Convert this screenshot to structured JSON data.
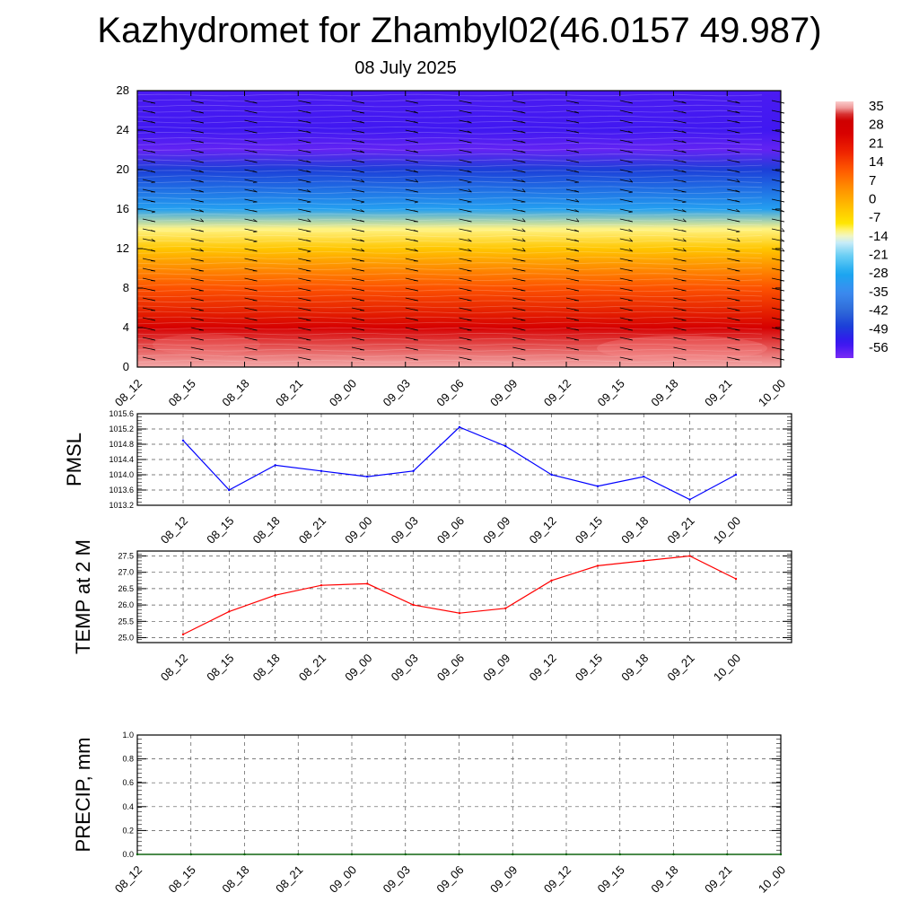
{
  "header": {
    "title": "Kazhydromet for Zhambyl02(46.0157 49.987)",
    "date": "08 July 2025"
  },
  "chart_data": [
    {
      "id": "profile",
      "type": "heatmap",
      "title": "",
      "xlabel": "",
      "ylabel": "",
      "categories": [
        "08_12",
        "08_15",
        "08_18",
        "08_21",
        "09_00",
        "09_03",
        "09_06",
        "09_09",
        "09_12",
        "09_15",
        "09_18",
        "09_21",
        "10_00"
      ],
      "y_ticks": [
        "0",
        "4",
        "8",
        "12",
        "16",
        "20",
        "24",
        "28"
      ],
      "ylim": [
        0,
        28
      ],
      "colorbar_labels": [
        "35",
        "28",
        "21",
        "14",
        "7",
        "0",
        "-7",
        "-14",
        "-21",
        "-28",
        "-35",
        "-42",
        "-49",
        "-56"
      ],
      "temperature_by_level": [
        {
          "level": 0,
          "value": 35
        },
        {
          "level": 4,
          "value": 26
        },
        {
          "level": 8,
          "value": 12
        },
        {
          "level": 12,
          "value": -4
        },
        {
          "level": 14,
          "value": -12
        },
        {
          "level": 16,
          "value": -30
        },
        {
          "level": 20,
          "value": -48
        },
        {
          "level": 22,
          "value": -58
        },
        {
          "level": 24,
          "value": -55
        },
        {
          "level": 28,
          "value": -56
        }
      ],
      "has_wind_barbs": true
    },
    {
      "id": "pmsl",
      "type": "line",
      "ylabel": "PMSL",
      "categories": [
        "08_12",
        "08_15",
        "08_18",
        "08_21",
        "09_00",
        "09_03",
        "09_06",
        "09_09",
        "09_12",
        "09_15",
        "09_18",
        "09_21",
        "10_00"
      ],
      "y_ticks": [
        "1015.6",
        "1015.2",
        "1014.8",
        "1014.4",
        "1014.0",
        "1013.6",
        "1013.2"
      ],
      "ylim": [
        1013.2,
        1015.6
      ],
      "series": [
        {
          "color": "#0000ff",
          "values": [
            1014.9,
            1013.6,
            1014.25,
            1014.1,
            1013.95,
            1014.1,
            1015.25,
            1014.75,
            1014.0,
            1013.7,
            1013.95,
            1013.35,
            1014.0
          ]
        }
      ],
      "grid": true
    },
    {
      "id": "temp",
      "type": "line",
      "ylabel": "TEMP at 2 M",
      "categories": [
        "08_12",
        "08_15",
        "08_18",
        "08_21",
        "09_00",
        "09_03",
        "09_06",
        "09_09",
        "09_12",
        "09_15",
        "09_18",
        "09_21",
        "10_00"
      ],
      "y_ticks": [
        "27.5",
        "27.0",
        "26.5",
        "26.0",
        "25.5",
        "25.0"
      ],
      "ylim": [
        24.85,
        27.65
      ],
      "series": [
        {
          "color": "#ff0000",
          "values": [
            25.1,
            25.8,
            26.3,
            26.6,
            26.65,
            26.0,
            25.75,
            25.9,
            26.75,
            27.2,
            27.35,
            27.5,
            26.8
          ]
        }
      ],
      "grid": true
    },
    {
      "id": "precip",
      "type": "line",
      "ylabel": "PRECIP, mm",
      "categories": [
        "08_12",
        "08_15",
        "08_18",
        "08_21",
        "09_00",
        "09_03",
        "09_06",
        "09_09",
        "09_12",
        "09_15",
        "09_18",
        "09_21",
        "10_00"
      ],
      "y_ticks": [
        "1.0",
        "0.8",
        "0.6",
        "0.4",
        "0.2",
        "0.0"
      ],
      "ylim": [
        0,
        1
      ],
      "series": [
        {
          "color": "#006400",
          "values": [
            0,
            0,
            0,
            0,
            0,
            0,
            0,
            0,
            0,
            0,
            0,
            0,
            0
          ]
        }
      ],
      "grid": true
    }
  ]
}
